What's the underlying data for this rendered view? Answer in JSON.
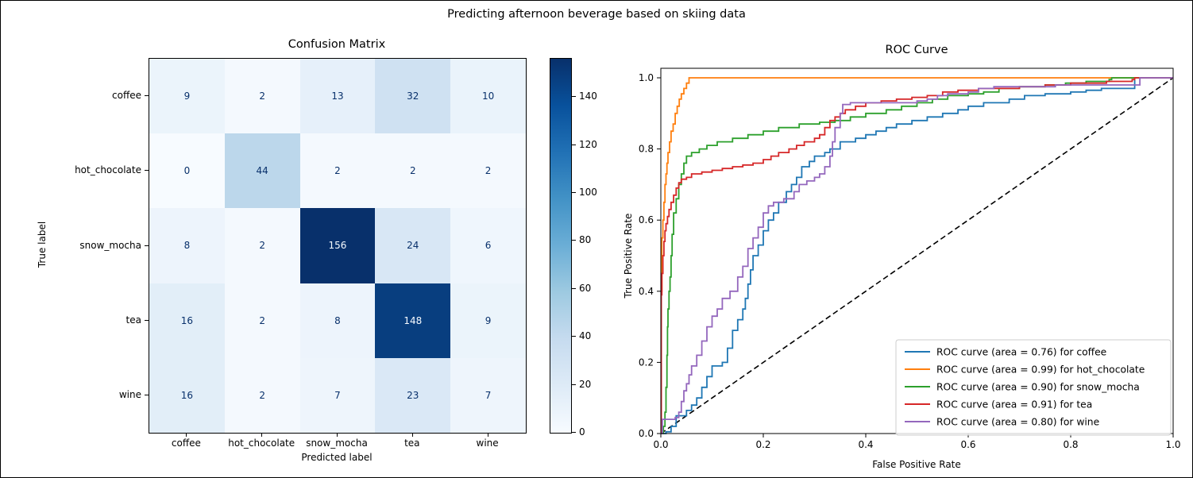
{
  "figure_title": "Predicting afternoon beverage based on skiing data",
  "chart_data": [
    {
      "type": "heatmap",
      "title": "Confusion Matrix",
      "xlabel": "Predicted label",
      "ylabel": "True label",
      "x_categories": [
        "coffee",
        "hot_chocolate",
        "snow_mocha",
        "tea",
        "wine"
      ],
      "y_categories": [
        "coffee",
        "hot_chocolate",
        "snow_mocha",
        "tea",
        "wine"
      ],
      "values": [
        [
          9,
          2,
          13,
          32,
          10
        ],
        [
          0,
          44,
          2,
          2,
          2
        ],
        [
          8,
          2,
          156,
          24,
          6
        ],
        [
          16,
          2,
          8,
          148,
          9
        ],
        [
          16,
          2,
          7,
          23,
          7
        ]
      ],
      "vmin": 0,
      "vmax": 156,
      "colormap": "Blues",
      "colorbar_ticks": [
        0,
        20,
        40,
        60,
        80,
        100,
        120,
        140
      ],
      "text_color_dark": "#08306b",
      "text_color_light": "#f7fbff"
    },
    {
      "type": "line",
      "title": "ROC Curve",
      "xlabel": "False Positive Rate",
      "ylabel": "True Positive Rate",
      "xlim": [
        0,
        1
      ],
      "ylim": [
        0,
        1.03
      ],
      "x_tick_labels": [
        "0.0",
        "0.2",
        "0.4",
        "0.6",
        "0.8",
        "1.0"
      ],
      "y_tick_labels": [
        "0.0",
        "0.2",
        "0.4",
        "0.6",
        "0.8",
        "1.0"
      ],
      "x_tick_values": [
        0,
        0.2,
        0.4,
        0.6,
        0.8,
        1.0
      ],
      "y_tick_values": [
        0,
        0.2,
        0.4,
        0.6,
        0.8,
        1.0
      ],
      "grid": false,
      "legend_position": "lower right",
      "diagonal": {
        "color": "#000000",
        "style": "dashed",
        "from": [
          0,
          0
        ],
        "to": [
          1,
          1
        ]
      },
      "series": [
        {
          "name": "coffee",
          "auc": 0.76,
          "color": "#1f77b4",
          "legend_label": "ROC curve (area = 0.76) for coffee",
          "points": [
            [
              0,
              0
            ],
            [
              0.01,
              0.005
            ],
            [
              0.02,
              0.02
            ],
            [
              0.03,
              0.05
            ],
            [
              0.05,
              0.065
            ],
            [
              0.06,
              0.08
            ],
            [
              0.07,
              0.1
            ],
            [
              0.08,
              0.13
            ],
            [
              0.09,
              0.16
            ],
            [
              0.1,
              0.19
            ],
            [
              0.12,
              0.2
            ],
            [
              0.13,
              0.24
            ],
            [
              0.14,
              0.29
            ],
            [
              0.15,
              0.32
            ],
            [
              0.16,
              0.35
            ],
            [
              0.165,
              0.38
            ],
            [
              0.17,
              0.42
            ],
            [
              0.175,
              0.46
            ],
            [
              0.18,
              0.5
            ],
            [
              0.19,
              0.53
            ],
            [
              0.2,
              0.57
            ],
            [
              0.21,
              0.6
            ],
            [
              0.22,
              0.62
            ],
            [
              0.23,
              0.65
            ],
            [
              0.245,
              0.68
            ],
            [
              0.255,
              0.7
            ],
            [
              0.265,
              0.72
            ],
            [
              0.275,
              0.75
            ],
            [
              0.29,
              0.765
            ],
            [
              0.3,
              0.78
            ],
            [
              0.32,
              0.79
            ],
            [
              0.33,
              0.8
            ],
            [
              0.35,
              0.82
            ],
            [
              0.38,
              0.83
            ],
            [
              0.4,
              0.84
            ],
            [
              0.42,
              0.85
            ],
            [
              0.44,
              0.86
            ],
            [
              0.46,
              0.87
            ],
            [
              0.49,
              0.88
            ],
            [
              0.52,
              0.89
            ],
            [
              0.55,
              0.9
            ],
            [
              0.58,
              0.91
            ],
            [
              0.6,
              0.92
            ],
            [
              0.63,
              0.93
            ],
            [
              0.68,
              0.94
            ],
            [
              0.71,
              0.95
            ],
            [
              0.75,
              0.955
            ],
            [
              0.8,
              0.96
            ],
            [
              0.83,
              0.965
            ],
            [
              0.86,
              0.97
            ],
            [
              0.92,
              0.97
            ],
            [
              0.925,
              1.0
            ],
            [
              1,
              1
            ]
          ]
        },
        {
          "name": "hot_chocolate",
          "auc": 0.99,
          "color": "#ff7f0e",
          "legend_label": "ROC curve (area = 0.99) for hot_chocolate",
          "points": [
            [
              0,
              0
            ],
            [
              0.001,
              0.4
            ],
            [
              0.002,
              0.55
            ],
            [
              0.004,
              0.6
            ],
            [
              0.006,
              0.65
            ],
            [
              0.008,
              0.7
            ],
            [
              0.01,
              0.73
            ],
            [
              0.012,
              0.76
            ],
            [
              0.014,
              0.79
            ],
            [
              0.017,
              0.82
            ],
            [
              0.02,
              0.85
            ],
            [
              0.024,
              0.87
            ],
            [
              0.028,
              0.9
            ],
            [
              0.032,
              0.92
            ],
            [
              0.036,
              0.94
            ],
            [
              0.04,
              0.955
            ],
            [
              0.045,
              0.97
            ],
            [
              0.05,
              0.985
            ],
            [
              0.055,
              1.0
            ],
            [
              1,
              1
            ]
          ]
        },
        {
          "name": "snow_mocha",
          "auc": 0.9,
          "color": "#2ca02c",
          "legend_label": "ROC curve (area = 0.90) for snow_mocha",
          "points": [
            [
              0,
              0
            ],
            [
              0.005,
              0.02
            ],
            [
              0.008,
              0.06
            ],
            [
              0.01,
              0.13
            ],
            [
              0.012,
              0.22
            ],
            [
              0.013,
              0.3
            ],
            [
              0.014,
              0.35
            ],
            [
              0.016,
              0.4
            ],
            [
              0.018,
              0.44
            ],
            [
              0.02,
              0.5
            ],
            [
              0.022,
              0.56
            ],
            [
              0.025,
              0.62
            ],
            [
              0.03,
              0.66
            ],
            [
              0.035,
              0.7
            ],
            [
              0.04,
              0.73
            ],
            [
              0.045,
              0.76
            ],
            [
              0.05,
              0.78
            ],
            [
              0.06,
              0.79
            ],
            [
              0.075,
              0.8
            ],
            [
              0.09,
              0.81
            ],
            [
              0.11,
              0.82
            ],
            [
              0.14,
              0.83
            ],
            [
              0.17,
              0.84
            ],
            [
              0.2,
              0.85
            ],
            [
              0.23,
              0.86
            ],
            [
              0.27,
              0.87
            ],
            [
              0.31,
              0.875
            ],
            [
              0.34,
              0.88
            ],
            [
              0.37,
              0.89
            ],
            [
              0.4,
              0.9
            ],
            [
              0.44,
              0.91
            ],
            [
              0.47,
              0.92
            ],
            [
              0.5,
              0.93
            ],
            [
              0.53,
              0.94
            ],
            [
              0.56,
              0.95
            ],
            [
              0.6,
              0.955
            ],
            [
              0.63,
              0.96
            ],
            [
              0.66,
              0.97
            ],
            [
              0.7,
              0.975
            ],
            [
              0.75,
              0.98
            ],
            [
              0.79,
              0.985
            ],
            [
              0.83,
              0.99
            ],
            [
              0.875,
              0.995
            ],
            [
              0.88,
              1.0
            ],
            [
              1,
              1
            ]
          ]
        },
        {
          "name": "tea",
          "auc": 0.91,
          "color": "#d62728",
          "legend_label": "ROC curve (area = 0.91) for tea",
          "points": [
            [
              0,
              0
            ],
            [
              0.001,
              0.39
            ],
            [
              0.002,
              0.45
            ],
            [
              0.004,
              0.5
            ],
            [
              0.006,
              0.54
            ],
            [
              0.008,
              0.57
            ],
            [
              0.01,
              0.59
            ],
            [
              0.013,
              0.61
            ],
            [
              0.016,
              0.63
            ],
            [
              0.02,
              0.65
            ],
            [
              0.025,
              0.67
            ],
            [
              0.03,
              0.69
            ],
            [
              0.035,
              0.705
            ],
            [
              0.04,
              0.715
            ],
            [
              0.05,
              0.72
            ],
            [
              0.06,
              0.73
            ],
            [
              0.08,
              0.735
            ],
            [
              0.1,
              0.74
            ],
            [
              0.12,
              0.745
            ],
            [
              0.14,
              0.75
            ],
            [
              0.16,
              0.755
            ],
            [
              0.18,
              0.76
            ],
            [
              0.2,
              0.77
            ],
            [
              0.215,
              0.78
            ],
            [
              0.23,
              0.79
            ],
            [
              0.25,
              0.8
            ],
            [
              0.265,
              0.81
            ],
            [
              0.28,
              0.82
            ],
            [
              0.3,
              0.83
            ],
            [
              0.31,
              0.84
            ],
            [
              0.32,
              0.86
            ],
            [
              0.33,
              0.88
            ],
            [
              0.34,
              0.89
            ],
            [
              0.35,
              0.9
            ],
            [
              0.36,
              0.91
            ],
            [
              0.38,
              0.92
            ],
            [
              0.4,
              0.93
            ],
            [
              0.43,
              0.935
            ],
            [
              0.46,
              0.94
            ],
            [
              0.49,
              0.945
            ],
            [
              0.52,
              0.95
            ],
            [
              0.55,
              0.96
            ],
            [
              0.58,
              0.965
            ],
            [
              0.62,
              0.97
            ],
            [
              0.7,
              0.975
            ],
            [
              0.75,
              0.98
            ],
            [
              0.8,
              0.985
            ],
            [
              0.87,
              0.99
            ],
            [
              0.92,
              0.995
            ],
            [
              0.925,
              1.0
            ],
            [
              1,
              1
            ]
          ]
        },
        {
          "name": "wine",
          "auc": 0.8,
          "color": "#9467bd",
          "legend_label": "ROC curve (area = 0.80) for wine",
          "points": [
            [
              0,
              0
            ],
            [
              0.003,
              0.04
            ],
            [
              0.028,
              0.045
            ],
            [
              0.035,
              0.06
            ],
            [
              0.04,
              0.09
            ],
            [
              0.045,
              0.12
            ],
            [
              0.05,
              0.14
            ],
            [
              0.055,
              0.165
            ],
            [
              0.06,
              0.19
            ],
            [
              0.07,
              0.22
            ],
            [
              0.08,
              0.26
            ],
            [
              0.09,
              0.3
            ],
            [
              0.1,
              0.33
            ],
            [
              0.11,
              0.35
            ],
            [
              0.12,
              0.38
            ],
            [
              0.135,
              0.4
            ],
            [
              0.15,
              0.44
            ],
            [
              0.16,
              0.47
            ],
            [
              0.17,
              0.52
            ],
            [
              0.18,
              0.55
            ],
            [
              0.19,
              0.58
            ],
            [
              0.2,
              0.62
            ],
            [
              0.21,
              0.64
            ],
            [
              0.22,
              0.65
            ],
            [
              0.24,
              0.66
            ],
            [
              0.26,
              0.68
            ],
            [
              0.27,
              0.7
            ],
            [
              0.285,
              0.71
            ],
            [
              0.3,
              0.72
            ],
            [
              0.31,
              0.73
            ],
            [
              0.32,
              0.75
            ],
            [
              0.33,
              0.78
            ],
            [
              0.335,
              0.82
            ],
            [
              0.34,
              0.86
            ],
            [
              0.35,
              0.9
            ],
            [
              0.355,
              0.925
            ],
            [
              0.37,
              0.93
            ],
            [
              0.5,
              0.935
            ],
            [
              0.52,
              0.94
            ],
            [
              0.54,
              0.95
            ],
            [
              0.56,
              0.955
            ],
            [
              0.6,
              0.96
            ],
            [
              0.62,
              0.97
            ],
            [
              0.65,
              0.975
            ],
            [
              0.77,
              0.98
            ],
            [
              0.93,
              0.98
            ],
            [
              0.935,
              1.0
            ],
            [
              1,
              1
            ]
          ]
        }
      ]
    }
  ]
}
